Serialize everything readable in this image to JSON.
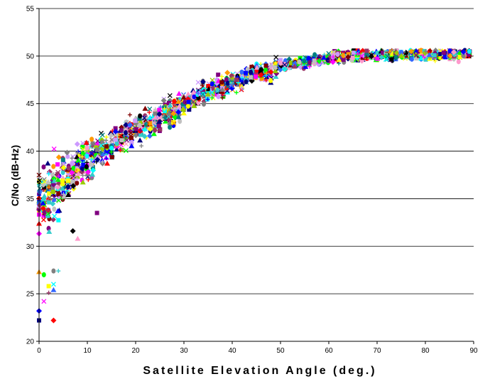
{
  "chart_data": {
    "type": "scatter",
    "xlabel": "Satellite Elevation Angle (deg.)",
    "ylabel": "C/No (dB-Hz)",
    "xlim": [
      0,
      90
    ],
    "ylim": [
      20,
      55
    ],
    "xticks": [
      0,
      10,
      20,
      30,
      40,
      50,
      60,
      70,
      80,
      90
    ],
    "yticks": [
      20,
      25,
      30,
      35,
      40,
      45,
      50,
      55
    ],
    "grid": "horizontal",
    "legend": "none",
    "marker_colors": [
      "#000080",
      "#ff00ff",
      "#ffff00",
      "#00ffff",
      "#800080",
      "#800000",
      "#008080",
      "#0000ff",
      "#00ff00",
      "#ff0000",
      "#808080",
      "#000000",
      "#c0c0c0",
      "#99cc00",
      "#ff9900",
      "#993366",
      "#3366ff",
      "#33cccc",
      "#ff99cc",
      "#cc99ff"
    ],
    "trend": {
      "description": "approximate mean C/No vs elevation, points scattered around it",
      "x": [
        0,
        5,
        10,
        15,
        20,
        25,
        30,
        35,
        40,
        45,
        50,
        55,
        60,
        65,
        70,
        75,
        80,
        85,
        89
      ],
      "y": [
        34.5,
        37.0,
        39.0,
        40.8,
        42.3,
        43.6,
        45.0,
        46.2,
        47.2,
        48.2,
        48.9,
        49.4,
        49.8,
        50.0,
        50.1,
        50.2,
        50.2,
        50.2,
        50.3
      ]
    },
    "low_outliers": [
      {
        "x": 0,
        "y": 22.2
      },
      {
        "x": 0,
        "y": 23.2
      },
      {
        "x": 0,
        "y": 27.3
      },
      {
        "x": 1,
        "y": 24.2
      },
      {
        "x": 1,
        "y": 27.0
      },
      {
        "x": 2,
        "y": 25.1
      },
      {
        "x": 2,
        "y": 25.8
      },
      {
        "x": 3,
        "y": 22.2
      },
      {
        "x": 3,
        "y": 25.4
      },
      {
        "x": 3,
        "y": 26.0
      },
      {
        "x": 3,
        "y": 27.4
      },
      {
        "x": 4,
        "y": 27.4
      },
      {
        "x": 12,
        "y": 33.5
      },
      {
        "x": 7,
        "y": 31.6
      },
      {
        "x": 8,
        "y": 30.8
      }
    ]
  }
}
